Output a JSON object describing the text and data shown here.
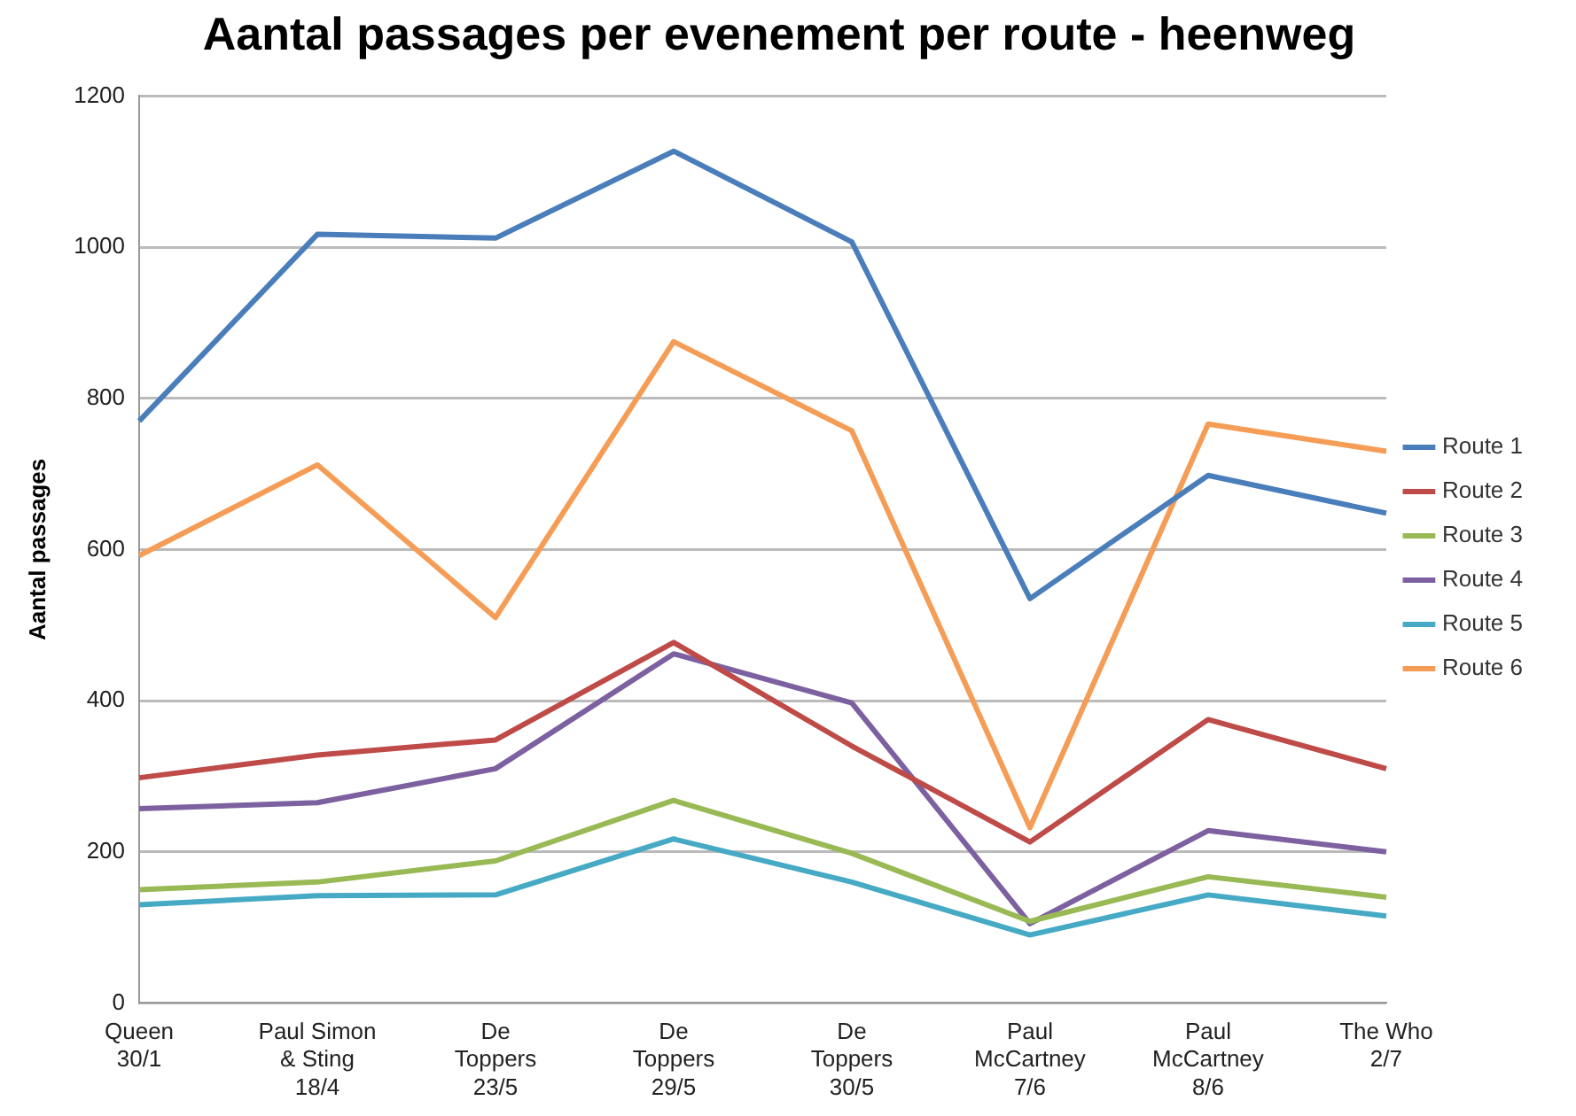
{
  "chart_data": {
    "type": "line",
    "title": "Aantal passages per evenement per route - heenweg",
    "ylabel": "Aantal passages",
    "categories": [
      "Queen\n30/1",
      "Paul Simon\n& Sting\n18/4",
      "De\nToppers\n23/5",
      "De\nToppers\n29/5",
      "De\nToppers\n30/5",
      "Paul\nMcCartney\n7/6",
      "Paul\nMcCartney\n8/6",
      "The Who\n2/7"
    ],
    "series": [
      {
        "name": "Route 1",
        "color": "#4a7ebb",
        "values": [
          770,
          1017,
          1012,
          1127,
          1007,
          535,
          698,
          648
        ]
      },
      {
        "name": "Route 2",
        "color": "#be4b48",
        "values": [
          298,
          328,
          348,
          477,
          340,
          213,
          375,
          310
        ]
      },
      {
        "name": "Route 3",
        "color": "#98b954",
        "values": [
          150,
          160,
          188,
          268,
          198,
          108,
          167,
          140
        ]
      },
      {
        "name": "Route 4",
        "color": "#7d60a0",
        "values": [
          257,
          265,
          310,
          462,
          397,
          105,
          228,
          200
        ]
      },
      {
        "name": "Route 5",
        "color": "#46aac5",
        "values": [
          130,
          142,
          143,
          217,
          160,
          90,
          143,
          115
        ]
      },
      {
        "name": "Route 6",
        "color": "#f59d56",
        "values": [
          592,
          712,
          510,
          875,
          757,
          232,
          766,
          730
        ]
      }
    ],
    "ylim": [
      0,
      1200
    ],
    "yticks": [
      0,
      200,
      400,
      600,
      800,
      1000,
      1200
    ],
    "grid": "y",
    "legend": "right",
    "marker": "none",
    "line_style": "solid"
  }
}
